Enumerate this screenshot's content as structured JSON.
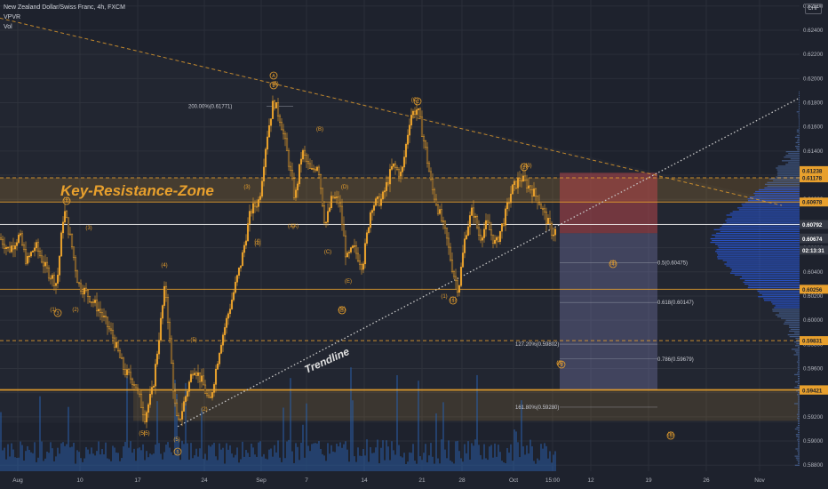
{
  "header": {
    "title": "New Zealand Dollar/Swiss Franc, 4h, FXCM",
    "indicator_1": "VPVR",
    "indicator_2": "Vol",
    "currency_button": "CHF"
  },
  "colors": {
    "background": "#1e222d",
    "candle": "#e8a02d",
    "level_line": "#e8a02d",
    "resistance_zone": "#e8a02d",
    "support_zone": "#e8a02d",
    "stop_zone": "#b4464a",
    "target_zone": "#7c7fb5",
    "volume_bar": "#2a5ea6",
    "profile_blue": "#2962ff",
    "trendline": "#c8c8c8"
  },
  "chart_data": {
    "type": "candlestick",
    "title": "New Zealand Dollar/Swiss Franc, 4h, FXCM",
    "timeframe": "4h",
    "x_tick_labels": [
      "Aug",
      "10",
      "17",
      "24",
      "Sep",
      "7",
      "14",
      "21",
      "28",
      "Oct",
      "15:00",
      "12",
      "19",
      "26",
      "Nov"
    ],
    "ylim": [
      0.5875,
      0.6265
    ],
    "y_ticks": [
      0.626,
      0.624,
      0.622,
      0.62,
      0.618,
      0.616,
      0.614,
      0.612,
      0.61,
      0.608,
      0.606,
      0.604,
      0.602,
      0.6,
      0.598,
      0.596,
      0.594,
      0.592,
      0.59,
      0.588
    ],
    "y_tick_labels": [
      "0.62600",
      "0.62400",
      "0.62200",
      "0.62000",
      "0.61800",
      "0.61600",
      "0.61400",
      "0.61200",
      "0.61000",
      "0.60800",
      "0.60600",
      "0.60400",
      "0.60200",
      "0.60000",
      "0.59800",
      "0.59600",
      "0.59400",
      "0.59200",
      "0.59000",
      "0.58800"
    ],
    "price_path": [
      [
        0,
        0.6068
      ],
      [
        10,
        0.6058
      ],
      [
        22,
        0.607
      ],
      [
        30,
        0.6048
      ],
      [
        40,
        0.6062
      ],
      [
        52,
        0.6042
      ],
      [
        64,
        0.603
      ],
      [
        72,
        0.6092
      ],
      [
        80,
        0.6065
      ],
      [
        88,
        0.603
      ],
      [
        98,
        0.6022
      ],
      [
        112,
        0.6008
      ],
      [
        126,
        0.5988
      ],
      [
        140,
        0.5958
      ],
      [
        152,
        0.5948
      ],
      [
        163,
        0.592
      ],
      [
        172,
        0.5943
      ],
      [
        186,
        0.603
      ],
      [
        196,
        0.5935
      ],
      [
        200,
        0.5912
      ],
      [
        210,
        0.594
      ],
      [
        218,
        0.5962
      ],
      [
        228,
        0.5948
      ],
      [
        236,
        0.593
      ],
      [
        248,
        0.598
      ],
      [
        262,
        0.602
      ],
      [
        272,
        0.605
      ],
      [
        282,
        0.609
      ],
      [
        292,
        0.61
      ],
      [
        300,
        0.615
      ],
      [
        308,
        0.6182
      ],
      [
        316,
        0.6165
      ],
      [
        324,
        0.6135
      ],
      [
        332,
        0.61
      ],
      [
        340,
        0.614
      ],
      [
        350,
        0.6122
      ],
      [
        358,
        0.613
      ],
      [
        366,
        0.6078
      ],
      [
        374,
        0.6102
      ],
      [
        382,
        0.6098
      ],
      [
        390,
        0.605
      ],
      [
        398,
        0.606
      ],
      [
        408,
        0.6045
      ],
      [
        418,
        0.6095
      ],
      [
        430,
        0.61
      ],
      [
        442,
        0.6128
      ],
      [
        452,
        0.612
      ],
      [
        462,
        0.617
      ],
      [
        470,
        0.6175
      ],
      [
        478,
        0.6145
      ],
      [
        486,
        0.611
      ],
      [
        494,
        0.609
      ],
      [
        502,
        0.607
      ],
      [
        510,
        0.604
      ],
      [
        516,
        0.6025
      ],
      [
        524,
        0.6072
      ],
      [
        532,
        0.6092
      ],
      [
        540,
        0.6068
      ],
      [
        548,
        0.608
      ],
      [
        558,
        0.6062
      ],
      [
        568,
        0.6085
      ],
      [
        576,
        0.6108
      ],
      [
        586,
        0.6118
      ],
      [
        596,
        0.611
      ],
      [
        606,
        0.61
      ],
      [
        614,
        0.6085
      ],
      [
        622,
        0.6072
      ],
      [
        626,
        0.6075
      ]
    ],
    "levels": {
      "key_resistance_zone": [
        0.6098,
        0.6118
      ],
      "support_zone": [
        0.5924,
        0.5942
      ],
      "horizontal_levels": [
        0.61178,
        0.60978,
        0.60792,
        0.60256,
        0.59831,
        0.59424,
        0.59421
      ]
    },
    "price_labels": [
      {
        "value": 0.61238,
        "text": "0.61238"
      },
      {
        "value": 0.61178,
        "text": "0.61178"
      },
      {
        "value": 0.60978,
        "text": "0.60978"
      },
      {
        "value": 0.60792,
        "text": "0.60792"
      },
      {
        "value": 0.6068,
        "text": "0.60680"
      },
      {
        "value": 0.60674,
        "text": "0.60674"
      },
      {
        "value": 0.6058,
        "text": "02:13:31"
      },
      {
        "value": 0.60256,
        "text": "0.60256"
      },
      {
        "value": 0.59831,
        "text": "0.59831"
      },
      {
        "value": 0.59424,
        "text": "0.59424"
      },
      {
        "value": 0.59421,
        "text": "0.59421"
      }
    ],
    "fib_labels": [
      {
        "text": "200.00%(0.61771)",
        "value": 0.61771
      },
      {
        "text": "0.5(0.60475)",
        "value": 0.60475
      },
      {
        "text": "0.618(0.60147)",
        "value": 0.60147
      },
      {
        "text": "127.20%(0.59802)",
        "value": 0.59802
      },
      {
        "text": "0.786(0.59679)",
        "value": 0.59679
      },
      {
        "text": "161.80%(0.59280)",
        "value": 0.5928
      }
    ],
    "annotations": {
      "resistance_label": "Key-Resistance-Zone",
      "trendline_label": "Trendline"
    },
    "wave_labels": [
      "(1)",
      "(2)",
      "(3)",
      "(4)",
      "(5)",
      "(A)",
      "(B)",
      "(C)",
      "(D)",
      "(E)",
      "(5)",
      "(4)",
      "(5)",
      "(5)",
      "(2)",
      "(1)",
      "(2)",
      "(3)",
      "(4)",
      "(5)",
      "(3)",
      "(3)",
      "(A)",
      "(C)",
      "(B)",
      "(1)",
      "(4)",
      "(3)",
      "(5)",
      "(4)"
    ],
    "wave_circle_labels": [
      "A",
      "5",
      "C",
      "2",
      "4",
      "3",
      "B",
      "1",
      "4",
      "3",
      "5",
      "5"
    ],
    "volume_profile": "right-side horizontal histogram",
    "grid": true,
    "legend": "none"
  }
}
